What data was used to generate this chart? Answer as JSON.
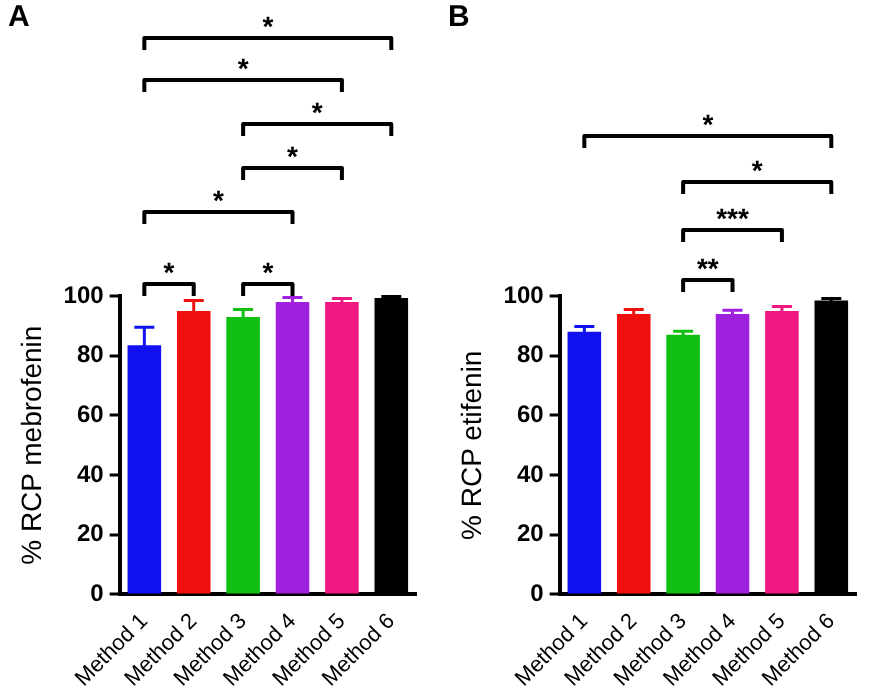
{
  "chart_data": [
    {
      "type": "bar",
      "title": "A",
      "ylabel": "% RCP mebrofenin",
      "categories": [
        "Method 1",
        "Method 2",
        "Method 3",
        "Method 4",
        "Method 5",
        "Method 6"
      ],
      "values": [
        83.5,
        95,
        93,
        98,
        98,
        99.3
      ],
      "colors": [
        "#1010f0",
        "#f01010",
        "#10c010",
        "#a020e0",
        "#f01880",
        "#000000"
      ],
      "errors": [
        6,
        3.5,
        2.5,
        1.5,
        1.2,
        0.5
      ],
      "ylim": [
        0,
        100
      ],
      "yticks": [
        0,
        20,
        40,
        60,
        80,
        100
      ],
      "grid": false,
      "annotations": [
        "*",
        "*",
        "*",
        "*",
        "*",
        "*",
        "*"
      ]
    },
    {
      "type": "bar",
      "title": "B",
      "ylabel": "% RCP etifenin",
      "categories": [
        "Method 1",
        "Method 2",
        "Method 3",
        "Method 4",
        "Method 5",
        "Method 6"
      ],
      "values": [
        88,
        94,
        87,
        94,
        95,
        98.5
      ],
      "colors": [
        "#1010f0",
        "#f01010",
        "#10c010",
        "#a020e0",
        "#f01880",
        "#000000"
      ],
      "errors": [
        1.8,
        1.5,
        1.2,
        1.2,
        1.5,
        0.7
      ],
      "ylim": [
        0,
        100
      ],
      "yticks": [
        0,
        20,
        40,
        60,
        80,
        100
      ],
      "grid": false,
      "annotations": [
        "*",
        "*",
        "***",
        "**"
      ]
    }
  ]
}
